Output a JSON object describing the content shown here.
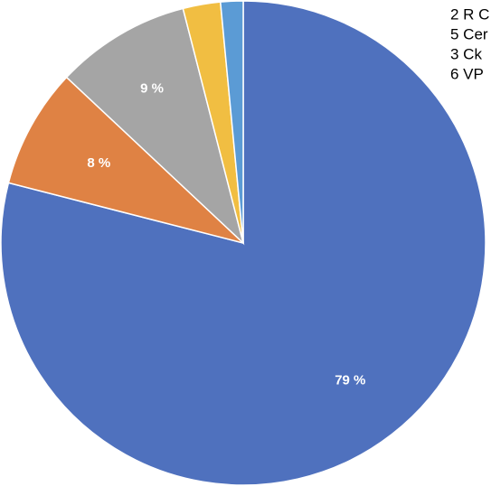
{
  "chart_data": {
    "type": "pie",
    "series": [
      {
        "values": [
          79,
          8,
          9,
          2.5,
          1.5
        ]
      }
    ],
    "slice_labels": [
      "79 %",
      "8 %",
      "9 %",
      "",
      ""
    ],
    "legend": {
      "placement": "top-right",
      "entries": [
        "2 R C",
        "5 Cer",
        "3 Ck",
        "6 VP"
      ]
    },
    "colors": [
      "#4f71be",
      "#df8244",
      "#a5a5a5",
      "#f1be42",
      "#5b9bd5"
    ],
    "start_angle_deg": 0,
    "direction": "clockwise"
  }
}
